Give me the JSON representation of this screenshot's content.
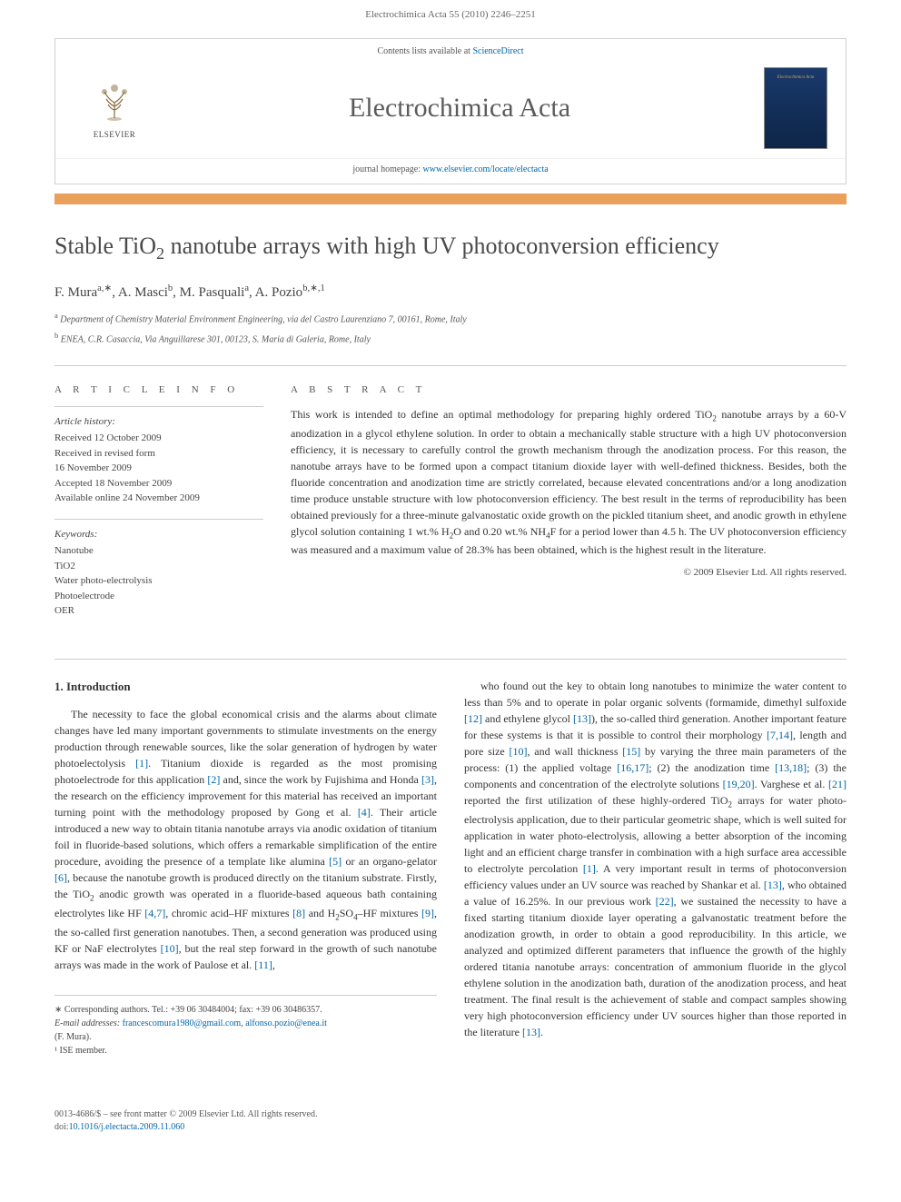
{
  "header_citation": "Electrochimica Acta 55 (2010) 2246–2251",
  "journal_box": {
    "top_text_prefix": "Contents lists available at ",
    "top_link": "ScienceDirect",
    "publisher_label": "ELSEVIER",
    "journal_name": "Electrochimica Acta",
    "cover_title": "Electrochimica Acta",
    "homepage_prefix": "journal homepage: ",
    "homepage_url": "www.elsevier.com/locate/electacta"
  },
  "article": {
    "title_html": "Stable TiO<sub>2</sub> nanotube arrays with high UV photoconversion efficiency",
    "authors_html": "F. Mura<sup>a,∗</sup>, A. Masci<sup>b</sup>, M. Pasquali<sup>a</sup>, A. Pozio<sup>b,∗,1</sup>",
    "affiliations": [
      "<sup>a</sup> Department of Chemistry Material Environment Engineering, via del Castro Laurenziano 7, 00161, Rome, Italy",
      "<sup>b</sup> ENEA, C.R. Casaccia, Via Anguillarese 301, 00123, S. Maria di Galeria, Rome, Italy"
    ]
  },
  "article_info": {
    "heading": "A R T I C L E   I N F O",
    "history_label": "Article history:",
    "history": [
      "Received 12 October 2009",
      "Received in revised form",
      "16 November 2009",
      "Accepted 18 November 2009",
      "Available online 24 November 2009"
    ],
    "keywords_label": "Keywords:",
    "keywords": [
      "Nanotube",
      "TiO2",
      "Water photo-electrolysis",
      "Photoelectrode",
      "OER"
    ]
  },
  "abstract": {
    "heading": "A B S T R A C T",
    "text_html": "This work is intended to define an optimal methodology for preparing highly ordered TiO<sub>2</sub> nanotube arrays by a 60-V anodization in a glycol ethylene solution. In order to obtain a mechanically stable structure with a high UV photoconversion efficiency, it is necessary to carefully control the growth mechanism through the anodization process. For this reason, the nanotube arrays have to be formed upon a compact titanium dioxide layer with well-defined thickness. Besides, both the fluoride concentration and anodization time are strictly correlated, because elevated concentrations and/or a long anodization time produce unstable structure with low photoconversion efficiency. The best result in the terms of reproducibility has been obtained previously for a three-minute galvanostatic oxide growth on the pickled titanium sheet, and anodic growth in ethylene glycol solution containing 1 wt.% H<sub>2</sub>O and 0.20 wt.% NH<sub>4</sub>F for a period lower than 4.5 h. The UV photoconversion efficiency was measured and a maximum value of 28.3% has been obtained, which is the highest result in the literature.",
    "copyright": "© 2009 Elsevier Ltd. All rights reserved."
  },
  "body": {
    "section_heading": "1. Introduction",
    "col1_html": "The necessity to face the global economical crisis and the alarms about climate changes have led many important governments to stimulate investments on the energy production through renewable sources, like the solar generation of hydrogen by water photoelectolysis <a href='#'>[1]</a>. Titanium dioxide is regarded as the most promising photoelectrode for this application <a href='#'>[2]</a> and, since the work by Fujishima and Honda <a href='#'>[3]</a>, the research on the efficiency improvement for this material has received an important turning point with the methodology proposed by Gong et al. <a href='#'>[4]</a>. Their article introduced a new way to obtain titania nanotube arrays via anodic oxidation of titanium foil in fluoride-based solutions, which offers a remarkable simplification of the entire procedure, avoiding the presence of a template like alumina <a href='#'>[5]</a> or an organo-gelator <a href='#'>[6]</a>, because the nanotube growth is produced directly on the titanium substrate. Firstly, the TiO<sub>2</sub> anodic growth was operated in a fluoride-based aqueous bath containing electrolytes like HF <a href='#'>[4,7]</a>, chromic acid–HF mixtures <a href='#'>[8]</a> and H<sub>2</sub>SO<sub>4</sub>–HF mixtures <a href='#'>[9]</a>, the so-called first generation nanotubes. Then, a second generation was produced using KF or NaF electrolytes <a href='#'>[10]</a>, but the real step forward in the growth of such nanotube arrays was made in the work of Paulose et al. <a href='#'>[11]</a>,",
    "col2_html": "who found out the key to obtain long nanotubes to minimize the water content to less than 5% and to operate in polar organic solvents (formamide, dimethyl sulfoxide <a href='#'>[12]</a> and ethylene glycol <a href='#'>[13]</a>), the so-called third generation. Another important feature for these systems is that it is possible to control their morphology <a href='#'>[7,14]</a>, length and pore size <a href='#'>[10]</a>, and wall thickness <a href='#'>[15]</a> by varying the three main parameters of the process: (1) the applied voltage <a href='#'>[16,17]</a>; (2) the anodization time <a href='#'>[13,18]</a>; (3) the components and concentration of the electrolyte solutions <a href='#'>[19,20]</a>. Varghese et al. <a href='#'>[21]</a> reported the first utilization of these highly-ordered TiO<sub>2</sub> arrays for water photo-electrolysis application, due to their particular geometric shape, which is well suited for application in water photo-electrolysis, allowing a better absorption of the incoming light and an efficient charge transfer in combination with a high surface area accessible to electrolyte percolation <a href='#'>[1]</a>. A very important result in terms of photoconversion efficiency values under an UV source was reached by Shankar et al. <a href='#'>[13]</a>, who obtained a value of 16.25%. In our previous work <a href='#'>[22]</a>, we sustained the necessity to have a fixed starting titanium dioxide layer operating a galvanostatic treatment before the anodization growth, in order to obtain a good reproducibility. In this article, we analyzed and optimized different parameters that influence the growth of the highly ordered titania nanotube arrays: concentration of ammonium fluoride in the glycol ethylene solution in the anodization bath, duration of the anodization process, and heat treatment. The final result is the achievement of stable and compact samples showing very high photoconversion efficiency under UV sources higher than those reported in the literature <a href='#'>[13]</a>."
  },
  "footnotes": {
    "corresponding": "∗ Corresponding authors. Tel.: +39 06 30484004; fax: +39 06 30486357.",
    "emails_label": "E-mail addresses:",
    "email1": "francescomura1980@gmail.com",
    "email2": "alfonso.pozio@enea.it",
    "email_name": "(F. Mura).",
    "ise": "¹ ISE member."
  },
  "footer": {
    "issn_line": "0013-4686/$ – see front matter © 2009 Elsevier Ltd. All rights reserved.",
    "doi_prefix": "doi:",
    "doi": "10.1016/j.electacta.2009.11.060"
  },
  "colors": {
    "link": "#0066aa",
    "orange_bar": "#e8a05a",
    "text": "#333333",
    "muted": "#555555",
    "border": "#cccccc"
  }
}
